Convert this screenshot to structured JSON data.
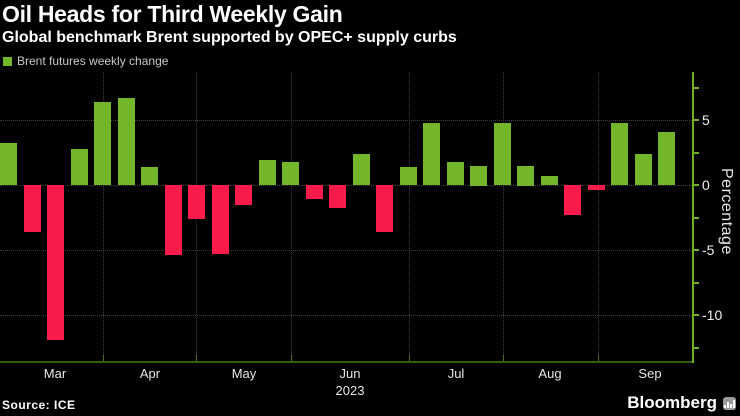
{
  "header": {
    "title": "Oil Heads for Third Weekly Gain",
    "subtitle": "Global benchmark Brent supported by OPEC+ supply curbs"
  },
  "legend": {
    "label": "Brent futures weekly change"
  },
  "chart_data": {
    "type": "bar",
    "title": "Brent futures weekly change",
    "values": [
      3.2,
      -3.6,
      -11.9,
      2.8,
      6.4,
      6.7,
      1.4,
      -5.4,
      -2.6,
      -5.3,
      -1.5,
      1.9,
      1.8,
      -1.1,
      -1.8,
      2.4,
      -3.6,
      1.4,
      4.8,
      1.8,
      1.5,
      4.8,
      1.5,
      0.7,
      -2.3,
      -0.4,
      4.8,
      2.4,
      4.1
    ],
    "x_tick_labels": [
      "Mar",
      "Apr",
      "May",
      "Jun",
      "Jul",
      "Aug",
      "Sep"
    ],
    "x_year_label": "2023",
    "ylabel": "Percentage",
    "y_tick_values": [
      5,
      0,
      -5,
      -10
    ],
    "y_minor_tick_values": [
      7.5,
      5,
      2.5,
      0,
      -2.5,
      -5,
      -7.5,
      -10,
      -12.5
    ],
    "ylim": [
      -13.5,
      8.7
    ],
    "grid": true,
    "legend_position": "top-left",
    "positive_color": "#74b62a",
    "negative_color": "#f81b4c",
    "y_axis_color": "#72ad24",
    "x_axis_color": "#2f5e11",
    "grid_color": "#3d3d3d"
  },
  "footer": {
    "source": "Source: ICE",
    "brand": "Bloomberg"
  }
}
